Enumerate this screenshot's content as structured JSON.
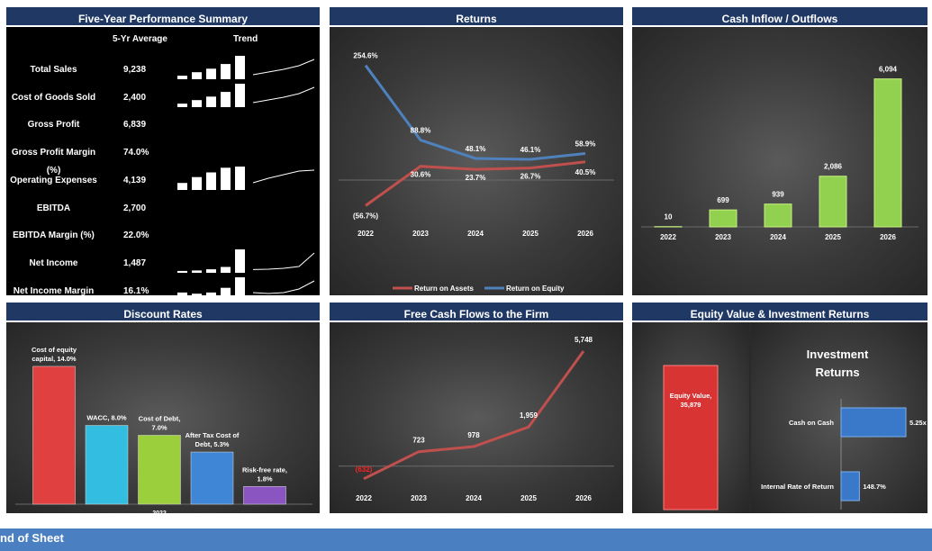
{
  "summary": {
    "title": "Five-Year Performance Summary",
    "col_avg": "5-Yr Average",
    "col_trend": "Trend",
    "rows": [
      {
        "label": "Total Sales",
        "value": "9,238",
        "bars": [
          0.15,
          0.3,
          0.45,
          0.65,
          1.0
        ],
        "has_trend": true
      },
      {
        "label": "Cost of Goods Sold",
        "value": "2,400",
        "bars": [
          0.15,
          0.3,
          0.45,
          0.65,
          1.0
        ],
        "has_trend": true
      },
      {
        "label": "Gross Profit",
        "value": "6,839",
        "bars": [],
        "has_trend": false
      },
      {
        "label": "Gross Profit Margin (%)",
        "value": "74.0%",
        "bars": [],
        "has_trend": false
      },
      {
        "label": "Operating Expenses",
        "value": "4,139",
        "bars": [
          0.3,
          0.55,
          0.75,
          0.95,
          1.0
        ],
        "has_trend": true
      },
      {
        "label": "EBITDA",
        "value": "2,700",
        "bars": [],
        "has_trend": false
      },
      {
        "label": "EBITDA Margin (%)",
        "value": "22.0%",
        "bars": [],
        "has_trend": false
      },
      {
        "label": "Net Income",
        "value": "1,487",
        "bars": [
          0.08,
          0.1,
          0.15,
          0.25,
          1.0
        ],
        "has_trend": true
      },
      {
        "label": "Net Income Margin (%)",
        "value": "16.1%",
        "bars": [
          0.35,
          0.3,
          0.35,
          0.55,
          1.0
        ],
        "has_trend": true
      }
    ]
  },
  "returns": {
    "title": "Returns",
    "chart_data": {
      "type": "line",
      "x": [
        "2022",
        "2023",
        "2024",
        "2025",
        "2026"
      ],
      "series": [
        {
          "name": "Return on Assets",
          "values": [
            -56.7,
            30.6,
            23.7,
            26.7,
            40.5
          ],
          "labels": [
            "(56.7%)",
            "30.6%",
            "23.7%",
            "26.7%",
            "40.5%"
          ],
          "color": "#c0504d"
        },
        {
          "name": "Return on Equity",
          "values": [
            254.6,
            88.8,
            48.1,
            46.1,
            58.9
          ],
          "labels": [
            "254.6%",
            "88.8%",
            "48.1%",
            "46.1%",
            "58.9%"
          ],
          "color": "#4f81bd"
        }
      ],
      "ylim": [
        -80,
        280
      ]
    }
  },
  "cashflow": {
    "title": "Cash Inflow / Outflows",
    "chart_data": {
      "type": "bar",
      "categories": [
        "2022",
        "2023",
        "2024",
        "2025",
        "2026"
      ],
      "values": [
        10,
        699,
        939,
        2086,
        6094
      ],
      "labels": [
        "10",
        "699",
        "939",
        "2,086",
        "6,094"
      ],
      "ylim": [
        0,
        6600
      ],
      "color": "#92d050"
    }
  },
  "discount": {
    "title": "Discount Rates",
    "chart_data": {
      "type": "bar",
      "categories": [
        "Cost of equity capital",
        "WACC",
        "Cost of Debt",
        "After Tax Cost of Debt",
        "Risk-free rate"
      ],
      "values": [
        14.0,
        8.0,
        7.0,
        5.3,
        1.8
      ],
      "labels": [
        [
          "Cost of equity",
          "capital, 14.0%"
        ],
        [
          "WACC, 8.0%"
        ],
        [
          "Cost of Debt,",
          "7.0%"
        ],
        [
          "After Tax Cost of",
          "Debt, 5.3%"
        ],
        [
          "Risk-free rate,",
          "1.8%"
        ]
      ],
      "colors": [
        "#e04040",
        "#33bde0",
        "#9bcf3c",
        "#3f86d6",
        "#8a55c0"
      ],
      "ylim": [
        0,
        15
      ],
      "axis_label": "2022"
    }
  },
  "fcff": {
    "title": "Free Cash Flows to the Firm",
    "chart_data": {
      "type": "line",
      "x": [
        "2022",
        "2023",
        "2024",
        "2025",
        "2026"
      ],
      "values": [
        -632,
        723,
        978,
        1959,
        5748
      ],
      "labels": [
        "(632)",
        "723",
        "978",
        "1,959",
        "5,748"
      ],
      "ylim": [
        -1000,
        6200
      ],
      "color": "#c0504d"
    }
  },
  "equity": {
    "title": "Equity Value & Investment Returns",
    "equity_label": [
      "Equity Value,",
      "35,879"
    ],
    "investment_title": [
      "Investment",
      "Returns"
    ],
    "chart_data": {
      "type": "bar",
      "categories": [
        "Cash on Cash",
        "Internal Rate of Return"
      ],
      "values": [
        5.25,
        1.487
      ],
      "labels": [
        "5.25x",
        "148.7%"
      ]
    }
  },
  "footer": {
    "text": "nd of Sheet"
  }
}
